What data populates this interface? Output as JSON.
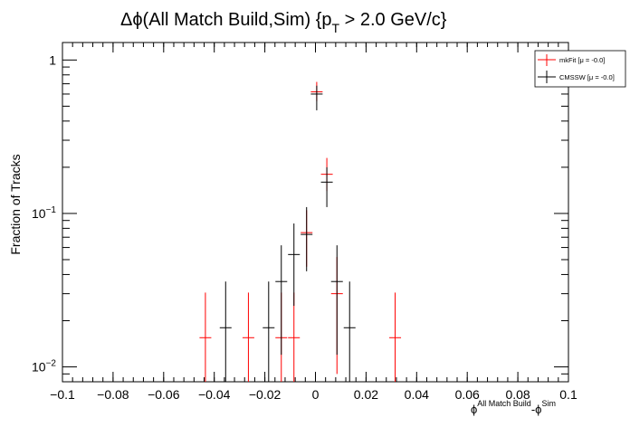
{
  "chart_data": {
    "type": "scatter",
    "title": "Δϕ(All Match Build,Sim) {p",
    "title_sub": "T",
    "title_tail": " > 2.0 GeV/c}",
    "ylabel": "Fraction of Tracks",
    "xlabel_main": "ϕ",
    "xlabel_sup1": "All Match Build",
    "xlabel_mid": "-ϕ",
    "xlabel_sup2": "Sim",
    "xlim": [
      -0.1,
      0.1
    ],
    "ylim": [
      0.008,
      1.3
    ],
    "yscale": "log",
    "xticks": [
      "−0.1",
      "−0.08",
      "−0.06",
      "−0.04",
      "−0.02",
      "0",
      "0.02",
      "0.04",
      "0.06",
      "0.08",
      "0.1"
    ],
    "xtick_values": [
      -0.1,
      -0.08,
      -0.06,
      -0.04,
      -0.02,
      0,
      0.02,
      0.04,
      0.06,
      0.08,
      0.1
    ],
    "yticks": [
      {
        "value": 1,
        "base": "1",
        "exp": ""
      },
      {
        "value": 0.1,
        "base": "10",
        "exp": "−1"
      },
      {
        "value": 0.01,
        "base": "10",
        "exp": "−2"
      }
    ],
    "legend_position": "top-right",
    "series": [
      {
        "name": "mkFit  [μ = -0.0]",
        "color": "#ff0000",
        "points": [
          {
            "x": -0.0435,
            "y": 0.0155,
            "lo": 0.0035,
            "hi": 0.0305
          },
          {
            "x": -0.0265,
            "y": 0.0155,
            "lo": 0.0035,
            "hi": 0.0305
          },
          {
            "x": -0.0135,
            "y": 0.0155,
            "lo": 0.0035,
            "hi": 0.0305
          },
          {
            "x": -0.0085,
            "y": 0.0155,
            "lo": 0.0035,
            "hi": 0.0305
          },
          {
            "x": -0.0035,
            "y": 0.075,
            "lo": 0.045,
            "hi": 0.105
          },
          {
            "x": 0.0005,
            "y": 0.62,
            "lo": 0.54,
            "hi": 0.72
          },
          {
            "x": 0.0045,
            "y": 0.18,
            "lo": 0.14,
            "hi": 0.23
          },
          {
            "x": 0.0085,
            "y": 0.03,
            "lo": 0.009,
            "hi": 0.052
          },
          {
            "x": 0.0315,
            "y": 0.0155,
            "lo": 0.0035,
            "hi": 0.0305
          }
        ]
      },
      {
        "name": "CMSSW  [μ = -0.0]",
        "color": "#000000",
        "points": [
          {
            "x": -0.0355,
            "y": 0.018,
            "lo": 0.004,
            "hi": 0.036
          },
          {
            "x": -0.0185,
            "y": 0.018,
            "lo": 0.004,
            "hi": 0.036
          },
          {
            "x": -0.0135,
            "y": 0.036,
            "lo": 0.012,
            "hi": 0.062
          },
          {
            "x": -0.0085,
            "y": 0.054,
            "lo": 0.025,
            "hi": 0.086
          },
          {
            "x": -0.0035,
            "y": 0.073,
            "lo": 0.042,
            "hi": 0.11
          },
          {
            "x": 0.0005,
            "y": 0.6,
            "lo": 0.47,
            "hi": 0.68
          },
          {
            "x": 0.0045,
            "y": 0.16,
            "lo": 0.11,
            "hi": 0.2
          },
          {
            "x": 0.0085,
            "y": 0.036,
            "lo": 0.012,
            "hi": 0.062
          },
          {
            "x": 0.0135,
            "y": 0.018,
            "lo": 0.004,
            "hi": 0.036
          }
        ]
      }
    ]
  }
}
